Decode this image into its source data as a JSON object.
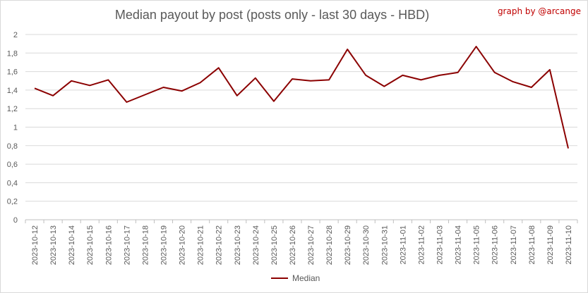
{
  "chart_data": {
    "type": "line",
    "title": "Median payout by post (posts only - last 30 days - HBD)",
    "credit": "graph by @arcange",
    "xlabel": "",
    "ylabel": "",
    "ylim": [
      0,
      2
    ],
    "yticks": [
      "0",
      "0,2",
      "0,4",
      "0,6",
      "0,8",
      "1",
      "1,2",
      "1,4",
      "1,6",
      "1,8",
      "2"
    ],
    "grid": true,
    "legend_position": "bottom",
    "categories": [
      "2023-10-12",
      "2023-10-13",
      "2023-10-14",
      "2023-10-15",
      "2023-10-16",
      "2023-10-17",
      "2023-10-18",
      "2023-10-19",
      "2023-10-20",
      "2023-10-21",
      "2023-10-22",
      "2023-10-23",
      "2023-10-24",
      "2023-10-25",
      "2023-10-26",
      "2023-10-27",
      "2023-10-28",
      "2023-10-29",
      "2023-10-30",
      "2023-10-31",
      "2023-11-01",
      "2023-11-02",
      "2023-11-03",
      "2023-11-04",
      "2023-11-05",
      "2023-11-06",
      "2023-11-07",
      "2023-11-08",
      "2023-11-09",
      "2023-11-10"
    ],
    "series": [
      {
        "name": "Median",
        "color": "#8b0000",
        "values": [
          1.42,
          1.34,
          1.5,
          1.45,
          1.51,
          1.27,
          1.35,
          1.43,
          1.39,
          1.48,
          1.64,
          1.34,
          1.53,
          1.28,
          1.52,
          1.5,
          1.51,
          1.84,
          1.56,
          1.44,
          1.56,
          1.51,
          1.56,
          1.59,
          1.87,
          1.59,
          1.49,
          1.43,
          1.62,
          0.77
        ]
      }
    ]
  }
}
